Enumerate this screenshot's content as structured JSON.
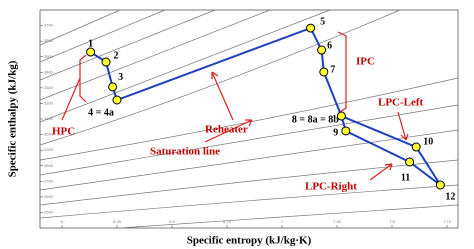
{
  "chart_data": {
    "type": "line",
    "x_label": "Specific entropy (kJ/kg·K)",
    "y_label": "Specific enthalpy (kJ/kg)",
    "xlim": [
      5.9,
      7.8
    ],
    "xticks": [
      6.0,
      6.25,
      6.5,
      6.75,
      7.0,
      7.25,
      7.5,
      7.75
    ],
    "ylim": [
      2400,
      3800
    ],
    "yticks": [
      2500,
      2600,
      2700,
      2800,
      2900,
      3000,
      3100,
      3200,
      3300,
      3400,
      3500,
      3600,
      3700
    ],
    "color": "#1f3fbf",
    "marker_color": "#ffff33",
    "points": [
      {
        "label": "1",
        "s": 6.13,
        "h": 3530
      },
      {
        "label": "2",
        "s": 6.2,
        "h": 3466
      },
      {
        "label": "3",
        "s": 6.23,
        "h": 3306
      },
      {
        "label": "4 = 4a",
        "s": 6.25,
        "h": 3222
      },
      {
        "label": "5",
        "s": 7.13,
        "h": 3684
      },
      {
        "label": "6",
        "s": 7.18,
        "h": 3543
      },
      {
        "label": "7",
        "s": 7.19,
        "h": 3402
      },
      {
        "label": "8 = 8a = 8b",
        "s": 7.27,
        "h": 3119
      },
      {
        "label": "9",
        "s": 7.29,
        "h": 3023
      },
      {
        "label": "10",
        "s": 7.61,
        "h": 2920
      },
      {
        "label": "11",
        "s": 7.58,
        "h": 2824
      },
      {
        "label": "12",
        "s": 7.72,
        "h": 2676
      }
    ],
    "annotations": [
      "HPC",
      "Reheater",
      "IPC",
      "LPC-Left",
      "LPC-Right",
      "Saturation line"
    ]
  }
}
